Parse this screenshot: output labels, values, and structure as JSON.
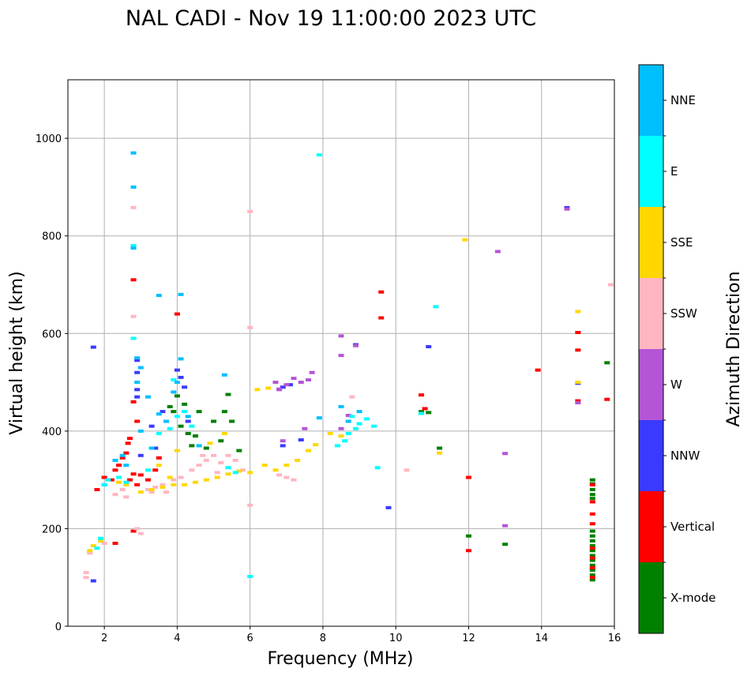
{
  "chart_data": {
    "type": "scatter",
    "title": "NAL CADI - Nov 19 11:00:00 2023 UTC",
    "xlabel": "Frequency (MHz)",
    "ylabel": "Virtual height (km)",
    "xlim": [
      1,
      16
    ],
    "ylim": [
      0,
      1120
    ],
    "xticks": [
      2,
      4,
      6,
      8,
      10,
      12,
      14,
      16
    ],
    "yticks": [
      0,
      200,
      400,
      600,
      800,
      1000
    ],
    "grid": true,
    "colorbar": {
      "label": "Azimuth Direction",
      "categories": [
        {
          "name": "X-mode",
          "color": "#008000"
        },
        {
          "name": "Vertical",
          "color": "#ff0000"
        },
        {
          "name": "NNW",
          "color": "#3a3aff"
        },
        {
          "name": "W",
          "color": "#b455d6"
        },
        {
          "name": "SSW",
          "color": "#ffb6c1"
        },
        {
          "name": "SSE",
          "color": "#ffd700"
        },
        {
          "name": "E",
          "color": "#00ffff"
        },
        {
          "name": "NNE",
          "color": "#00bfff"
        }
      ]
    },
    "series": [
      {
        "name": "X-mode",
        "points": [
          [
            4.0,
            472
          ],
          [
            4.2,
            455
          ],
          [
            4.4,
            370
          ],
          [
            4.6,
            440
          ],
          [
            4.8,
            365
          ],
          [
            5.0,
            420
          ],
          [
            5.2,
            380
          ],
          [
            5.3,
            440
          ],
          [
            5.5,
            420
          ],
          [
            5.7,
            360
          ],
          [
            3.8,
            450
          ],
          [
            4.1,
            410
          ],
          [
            4.5,
            390
          ],
          [
            10.7,
            440
          ],
          [
            10.9,
            438
          ],
          [
            11.2,
            365
          ],
          [
            12.0,
            185
          ],
          [
            13.0,
            168
          ],
          [
            15.8,
            540
          ],
          [
            15.4,
            300
          ],
          [
            15.4,
            292
          ],
          [
            15.4,
            280
          ],
          [
            15.4,
            270
          ],
          [
            15.4,
            262
          ],
          [
            15.4,
            195
          ],
          [
            15.4,
            185
          ],
          [
            15.4,
            175
          ],
          [
            15.4,
            165
          ],
          [
            15.4,
            155
          ],
          [
            15.4,
            145
          ],
          [
            15.4,
            135
          ],
          [
            15.4,
            125
          ],
          [
            15.4,
            115
          ],
          [
            15.4,
            105
          ],
          [
            15.4,
            95
          ],
          [
            4.3,
            395
          ],
          [
            3.9,
            440
          ],
          [
            5.4,
            475
          ]
        ]
      },
      {
        "name": "Vertical",
        "points": [
          [
            2.2,
            300
          ],
          [
            2.3,
            320
          ],
          [
            2.4,
            330
          ],
          [
            2.5,
            345
          ],
          [
            2.6,
            355
          ],
          [
            2.65,
            375
          ],
          [
            2.7,
            385
          ],
          [
            2.8,
            460
          ],
          [
            2.9,
            420
          ],
          [
            3.0,
            310
          ],
          [
            2.7,
            300
          ],
          [
            2.8,
            312
          ],
          [
            2.9,
            290
          ],
          [
            3.2,
            300
          ],
          [
            3.5,
            345
          ],
          [
            4.0,
            640
          ],
          [
            2.8,
            710
          ],
          [
            2.8,
            195
          ],
          [
            2.3,
            170
          ],
          [
            1.8,
            280
          ],
          [
            9.6,
            685
          ],
          [
            9.6,
            632
          ],
          [
            10.7,
            474
          ],
          [
            10.8,
            446
          ],
          [
            12.0,
            305
          ],
          [
            12.0,
            155
          ],
          [
            13.9,
            525
          ],
          [
            15.0,
            602
          ],
          [
            15.0,
            566
          ],
          [
            15.0,
            462
          ],
          [
            15.8,
            465
          ],
          [
            15.4,
            290
          ],
          [
            15.4,
            255
          ],
          [
            15.4,
            230
          ],
          [
            15.4,
            210
          ],
          [
            15.4,
            160
          ],
          [
            15.4,
            140
          ],
          [
            15.4,
            120
          ],
          [
            15.4,
            100
          ],
          [
            2.0,
            305
          ],
          [
            3.4,
            320
          ]
        ]
      },
      {
        "name": "NNW",
        "points": [
          [
            2.9,
            545
          ],
          [
            2.9,
            520
          ],
          [
            2.9,
            485
          ],
          [
            2.9,
            470
          ],
          [
            3.4,
            365
          ],
          [
            3.6,
            440
          ],
          [
            4.0,
            525
          ],
          [
            4.1,
            510
          ],
          [
            4.2,
            490
          ],
          [
            4.3,
            420
          ],
          [
            1.7,
            572
          ],
          [
            2.0,
            290
          ],
          [
            3.0,
            350
          ],
          [
            6.9,
            370
          ],
          [
            7.4,
            382
          ],
          [
            8.9,
            577
          ],
          [
            9.8,
            243
          ],
          [
            10.9,
            573
          ],
          [
            15.0,
            498
          ],
          [
            14.7,
            858
          ],
          [
            6.9,
            490
          ],
          [
            7.1,
            495
          ],
          [
            1.7,
            93
          ],
          [
            3.3,
            410
          ]
        ]
      },
      {
        "name": "W",
        "points": [
          [
            6.7,
            500
          ],
          [
            6.8,
            486
          ],
          [
            7.0,
            495
          ],
          [
            7.2,
            508
          ],
          [
            7.4,
            500
          ],
          [
            7.6,
            505
          ],
          [
            8.5,
            595
          ],
          [
            8.5,
            555
          ],
          [
            8.7,
            432
          ],
          [
            8.5,
            405
          ],
          [
            8.9,
            575
          ],
          [
            12.8,
            768
          ],
          [
            13.0,
            354
          ],
          [
            13.0,
            206
          ],
          [
            7.5,
            405
          ],
          [
            6.8,
            485
          ],
          [
            14.7,
            855
          ],
          [
            6.9,
            380
          ],
          [
            7.7,
            520
          ],
          [
            15.0,
            458
          ]
        ]
      },
      {
        "name": "SSW",
        "points": [
          [
            3.2,
            280
          ],
          [
            3.4,
            285
          ],
          [
            3.6,
            290
          ],
          [
            3.7,
            275
          ],
          [
            3.9,
            300
          ],
          [
            4.1,
            305
          ],
          [
            4.4,
            320
          ],
          [
            4.6,
            330
          ],
          [
            4.8,
            340
          ],
          [
            5.0,
            350
          ],
          [
            5.2,
            335
          ],
          [
            5.4,
            350
          ],
          [
            5.6,
            340
          ],
          [
            5.8,
            320
          ],
          [
            6.8,
            310
          ],
          [
            7.0,
            305
          ],
          [
            7.2,
            300
          ],
          [
            2.3,
            270
          ],
          [
            2.5,
            280
          ],
          [
            2.6,
            265
          ],
          [
            1.5,
            110
          ],
          [
            1.5,
            100
          ],
          [
            1.6,
            150
          ],
          [
            2.0,
            170
          ],
          [
            2.9,
            200
          ],
          [
            3.0,
            190
          ],
          [
            2.8,
            858
          ],
          [
            2.8,
            635
          ],
          [
            6.0,
            850
          ],
          [
            6.0,
            612
          ],
          [
            6.0,
            248
          ],
          [
            10.3,
            320
          ],
          [
            15.9,
            700
          ],
          [
            3.3,
            275
          ],
          [
            4.7,
            350
          ],
          [
            5.1,
            315
          ],
          [
            8.8,
            470
          ]
        ]
      },
      {
        "name": "SSE",
        "points": [
          [
            3.0,
            275
          ],
          [
            3.3,
            280
          ],
          [
            3.6,
            285
          ],
          [
            3.9,
            290
          ],
          [
            4.2,
            290
          ],
          [
            4.5,
            295
          ],
          [
            4.8,
            300
          ],
          [
            5.1,
            305
          ],
          [
            5.4,
            312
          ],
          [
            5.7,
            318
          ],
          [
            6.0,
            315
          ],
          [
            6.4,
            330
          ],
          [
            6.7,
            320
          ],
          [
            7.0,
            330
          ],
          [
            7.3,
            340
          ],
          [
            7.6,
            360
          ],
          [
            8.2,
            395
          ],
          [
            8.5,
            390
          ],
          [
            2.6,
            290
          ],
          [
            2.4,
            295
          ],
          [
            1.6,
            155
          ],
          [
            1.7,
            165
          ],
          [
            1.9,
            175
          ],
          [
            6.5,
            488
          ],
          [
            11.9,
            792
          ],
          [
            11.2,
            355
          ],
          [
            15.0,
            645
          ],
          [
            15.0,
            500
          ],
          [
            3.5,
            330
          ],
          [
            4.0,
            360
          ],
          [
            4.9,
            375
          ],
          [
            5.3,
            395
          ],
          [
            6.2,
            485
          ],
          [
            7.8,
            372
          ],
          [
            3.8,
            305
          ]
        ]
      },
      {
        "name": "E",
        "points": [
          [
            2.0,
            290
          ],
          [
            2.1,
            300
          ],
          [
            2.4,
            305
          ],
          [
            2.6,
            295
          ],
          [
            3.2,
            320
          ],
          [
            3.5,
            395
          ],
          [
            3.8,
            405
          ],
          [
            4.0,
            430
          ],
          [
            4.2,
            440
          ],
          [
            4.4,
            410
          ],
          [
            8.4,
            370
          ],
          [
            8.6,
            380
          ],
          [
            8.7,
            395
          ],
          [
            8.9,
            405
          ],
          [
            9.0,
            415
          ],
          [
            9.2,
            425
          ],
          [
            9.4,
            410
          ],
          [
            8.8,
            430
          ],
          [
            11.1,
            655
          ],
          [
            10.7,
            436
          ],
          [
            2.8,
            780
          ],
          [
            2.8,
            590
          ],
          [
            1.9,
            180
          ],
          [
            1.8,
            160
          ],
          [
            5.4,
            325
          ],
          [
            5.6,
            315
          ],
          [
            9.5,
            325
          ],
          [
            6.0,
            102
          ],
          [
            7.9,
            966
          ],
          [
            3.9,
            505
          ]
        ]
      },
      {
        "name": "NNE",
        "points": [
          [
            2.8,
            970
          ],
          [
            2.8,
            900
          ],
          [
            2.8,
            775
          ],
          [
            2.9,
            550
          ],
          [
            2.9,
            500
          ],
          [
            3.0,
            530
          ],
          [
            3.0,
            400
          ],
          [
            3.2,
            470
          ],
          [
            3.3,
            365
          ],
          [
            3.5,
            435
          ],
          [
            3.5,
            678
          ],
          [
            4.1,
            680
          ],
          [
            4.1,
            548
          ],
          [
            4.0,
            500
          ],
          [
            3.9,
            480
          ],
          [
            2.5,
            350
          ],
          [
            2.6,
            330
          ],
          [
            2.3,
            340
          ],
          [
            3.7,
            420
          ],
          [
            4.3,
            430
          ],
          [
            8.5,
            450
          ],
          [
            9.0,
            440
          ],
          [
            8.7,
            420
          ],
          [
            7.9,
            427
          ],
          [
            5.3,
            515
          ],
          [
            4.6,
            370
          ]
        ]
      }
    ]
  }
}
